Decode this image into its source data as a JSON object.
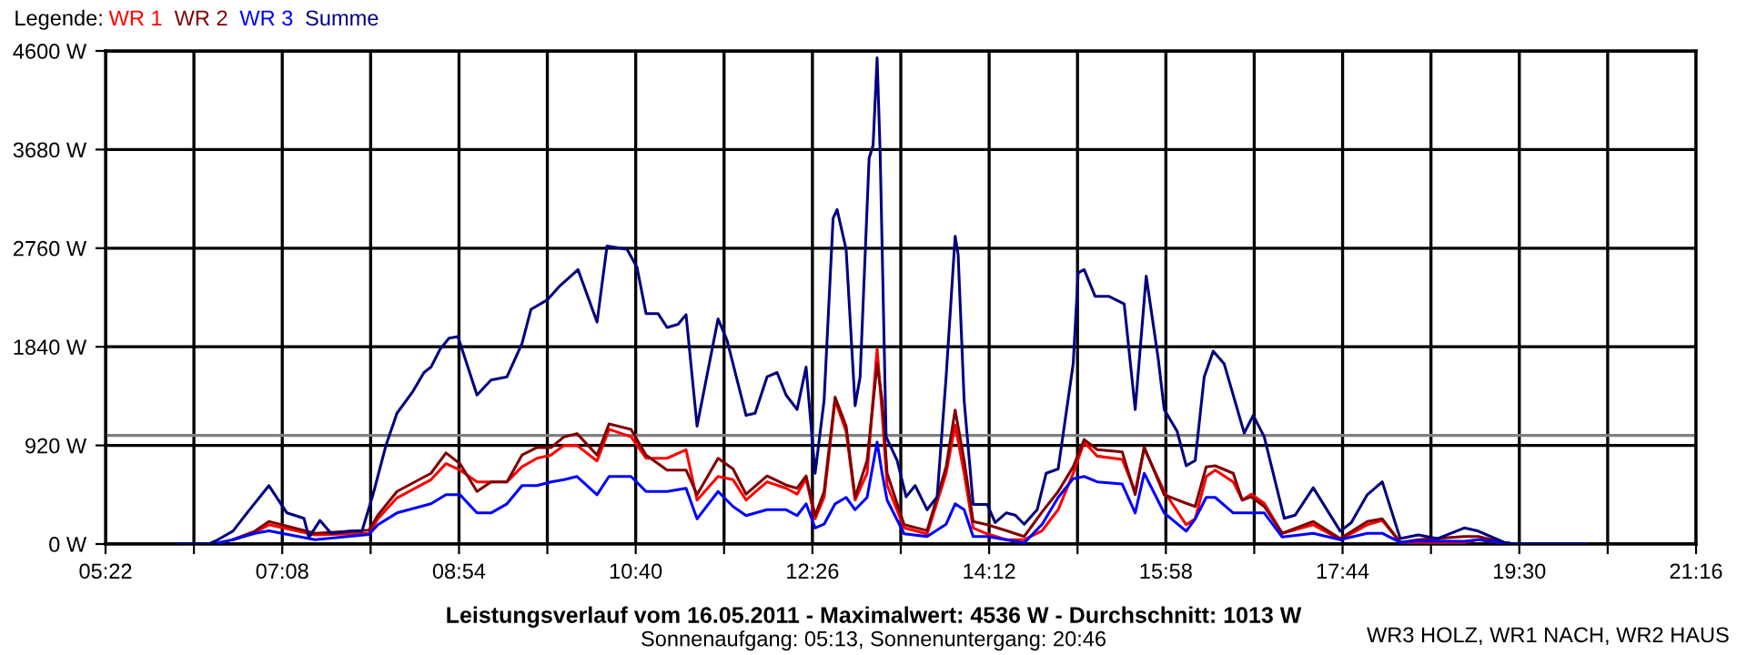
{
  "chart_data": {
    "type": "line",
    "title": "Leistungsverlauf vom 16.05.2011 - Maximalwert: 4536 W - Durchschnitt: 1013 W",
    "subtitle": "Sonnenaufgang: 05:13, Sonnenuntergang: 20:46",
    "legend_title": "Legende:",
    "legend": "top left",
    "grid": true,
    "marker": "none",
    "line_style": "solid",
    "annotations": [
      "WR3 HOLZ, WR1 NACH, WR2 HAUS"
    ],
    "xlim": [
      5.3667,
      21.2667
    ],
    "xticks": [
      {
        "value": 5.3667,
        "label": "05:22"
      },
      {
        "value": 6.25,
        "label": null
      },
      {
        "value": 7.1333,
        "label": "07:08"
      },
      {
        "value": 8.0167,
        "label": null
      },
      {
        "value": 8.9,
        "label": "08:54"
      },
      {
        "value": 9.7833,
        "label": null
      },
      {
        "value": 10.6667,
        "label": "10:40"
      },
      {
        "value": 11.55,
        "label": null
      },
      {
        "value": 12.4333,
        "label": "12:26"
      },
      {
        "value": 13.3167,
        "label": null
      },
      {
        "value": 14.2,
        "label": "14:12"
      },
      {
        "value": 15.0833,
        "label": null
      },
      {
        "value": 15.9667,
        "label": "15:58"
      },
      {
        "value": 16.85,
        "label": null
      },
      {
        "value": 17.7333,
        "label": "17:44"
      },
      {
        "value": 18.6167,
        "label": null
      },
      {
        "value": 19.5,
        "label": "19:30"
      },
      {
        "value": 20.3833,
        "label": null
      },
      {
        "value": 21.2667,
        "label": "21:16"
      }
    ],
    "ylim": [
      0,
      4600
    ],
    "yticks": [
      {
        "value": 0,
        "label": "0 W"
      },
      {
        "value": 920,
        "label": "920 W"
      },
      {
        "value": 1840,
        "label": "1840 W"
      },
      {
        "value": 2760,
        "label": "2760 W"
      },
      {
        "value": 3680,
        "label": "3680 W"
      },
      {
        "value": 4600,
        "label": "4600 W"
      }
    ],
    "ref_lines": [
      {
        "axis": "y",
        "value": 1013,
        "label": null,
        "color": "#808080"
      }
    ],
    "x": [
      6.49,
      6.64,
      6.86,
      7.0,
      7.46,
      8.0,
      8.09,
      8.28,
      8.62,
      8.77,
      8.91,
      9.08,
      9.22,
      9.38,
      9.53,
      9.68,
      9.82,
      9.95,
      10.08,
      10.28,
      10.4,
      10.62,
      10.77,
      10.98,
      11.17,
      11.28,
      11.49,
      11.64,
      11.77,
      11.98,
      12.17,
      12.28,
      12.37,
      12.46,
      12.55,
      12.66,
      12.77,
      12.86,
      12.98,
      13.08,
      13.13,
      13.18,
      13.35,
      13.58,
      13.77,
      13.86,
      13.95,
      14.04,
      14.18,
      14.37,
      14.55,
      14.73,
      14.89,
      15.04,
      15.15,
      15.28,
      15.53,
      15.66,
      15.75,
      15.95,
      16.17,
      16.26,
      16.37,
      16.46,
      16.64,
      16.73,
      16.82,
      16.95,
      17.13,
      17.44,
      17.71,
      17.98,
      18.13,
      18.31,
      18.49,
      18.95,
      19.09,
      19.35,
      19.46
    ],
    "series": [
      {
        "name": "WR 1",
        "color": "#ff0000",
        "values": [
          null,
          40,
          110,
          180,
          85,
          100,
          235,
          430,
          600,
          750,
          690,
          580,
          580,
          580,
          720,
          800,
          830,
          920,
          920,
          775,
          1070,
          1000,
          800,
          800,
          880,
          410,
          630,
          600,
          410,
          580,
          520,
          465,
          610,
          235,
          435,
          1340,
          1050,
          410,
          660,
          1820,
          1220,
          550,
          150,
          95,
          660,
          1110,
          660,
          150,
          95,
          40,
          40,
          125,
          320,
          660,
          950,
          820,
          790,
          490,
          890,
          490,
          180,
          235,
          630,
          690,
          580,
          410,
          465,
          380,
          100,
          180,
          40,
          180,
          220,
          15,
          15,
          15,
          40,
          10,
          0
        ]
      },
      {
        "name": "WR 2",
        "color": "#800000",
        "values": [
          null,
          40,
          120,
          210,
          100,
          130,
          270,
          490,
          660,
          850,
          750,
          490,
          580,
          580,
          830,
          900,
          900,
          1000,
          1030,
          830,
          1120,
          1070,
          830,
          690,
          690,
          460,
          800,
          700,
          465,
          635,
          550,
          520,
          635,
          265,
          490,
          1370,
          1100,
          435,
          780,
          1680,
          1340,
          660,
          180,
          125,
          720,
          1250,
          780,
          210,
          180,
          125,
          70,
          300,
          490,
          720,
          975,
          880,
          860,
          460,
          905,
          460,
          380,
          350,
          720,
          730,
          660,
          410,
          440,
          350,
          100,
          210,
          50,
          210,
          235,
          15,
          40,
          70,
          70,
          10,
          0
        ]
      },
      {
        "name": "WR 3",
        "color": "#0000ff",
        "values": [
          10,
          40,
          100,
          124,
          40,
          90,
          180,
          290,
          375,
          460,
          460,
          290,
          290,
          375,
          545,
          545,
          580,
          600,
          630,
          460,
          630,
          630,
          490,
          490,
          520,
          235,
          490,
          350,
          265,
          320,
          320,
          265,
          375,
          150,
          185,
          375,
          435,
          320,
          435,
          950,
          660,
          410,
          95,
          70,
          185,
          375,
          320,
          70,
          70,
          40,
          10,
          185,
          435,
          610,
          630,
          580,
          560,
          290,
          660,
          290,
          120,
          235,
          435,
          435,
          290,
          290,
          290,
          290,
          65,
          100,
          40,
          100,
          100,
          15,
          30,
          25,
          40,
          10,
          0
        ]
      },
      {
        "name": "Summe",
        "color": "#000080",
        "x": [
          6.08,
          6.4,
          6.49,
          6.64,
          6.79,
          7.0,
          7.18,
          7.35,
          7.4,
          7.51,
          7.62,
          7.82,
          7.93,
          8.04,
          8.17,
          8.28,
          8.44,
          8.55,
          8.62,
          8.71,
          8.8,
          8.89,
          9.08,
          9.22,
          9.38,
          9.53,
          9.62,
          9.78,
          9.91,
          10.09,
          10.28,
          10.38,
          10.58,
          10.68,
          10.77,
          10.89,
          10.98,
          11.09,
          11.17,
          11.28,
          11.49,
          11.58,
          11.77,
          11.86,
          11.98,
          12.08,
          12.17,
          12.28,
          12.37,
          12.44,
          12.46,
          12.55,
          12.64,
          12.68,
          12.77,
          12.86,
          12.91,
          13.0,
          13.04,
          13.08,
          13.11,
          13.17,
          13.28,
          13.37,
          13.46,
          13.58,
          13.68,
          13.77,
          13.86,
          13.89,
          13.95,
          14.04,
          14.18,
          14.26,
          14.37,
          14.46,
          14.55,
          14.68,
          14.77,
          14.89,
          15.04,
          15.09,
          15.15,
          15.26,
          15.4,
          15.55,
          15.66,
          15.77,
          15.89,
          15.95,
          16.08,
          16.17,
          16.26,
          16.35,
          16.44,
          16.55,
          16.75,
          16.84,
          16.95,
          17.15,
          17.26,
          17.44,
          17.71,
          17.82,
          17.98,
          18.13,
          18.31,
          18.49,
          18.68,
          18.95,
          19.09,
          19.35,
          19.46,
          20.17
        ],
        "values": [
          0,
          0,
          40,
          120,
          300,
          545,
          290,
          240,
          60,
          220,
          100,
          120,
          120,
          460,
          920,
          1220,
          1425,
          1600,
          1650,
          1815,
          1920,
          1935,
          1390,
          1530,
          1560,
          1870,
          2190,
          2275,
          2410,
          2560,
          2070,
          2780,
          2750,
          2580,
          2150,
          2150,
          2020,
          2050,
          2140,
          1100,
          2100,
          1900,
          1200,
          1220,
          1560,
          1600,
          1390,
          1255,
          1650,
          880,
          660,
          1340,
          3040,
          3120,
          2750,
          1290,
          1560,
          3600,
          3720,
          4536,
          3660,
          1000,
          780,
          440,
          545,
          320,
          440,
          1560,
          2870,
          2700,
          1340,
          370,
          370,
          200,
          290,
          270,
          185,
          320,
          660,
          700,
          1680,
          2530,
          2560,
          2310,
          2310,
          2240,
          1255,
          2500,
          1730,
          1255,
          1050,
          730,
          780,
          1560,
          1800,
          1680,
          1035,
          1200,
          1000,
          240,
          270,
          525,
          120,
          200,
          460,
          580,
          50,
          85,
          50,
          150,
          120,
          15,
          0,
          0
        ]
      }
    ]
  }
}
